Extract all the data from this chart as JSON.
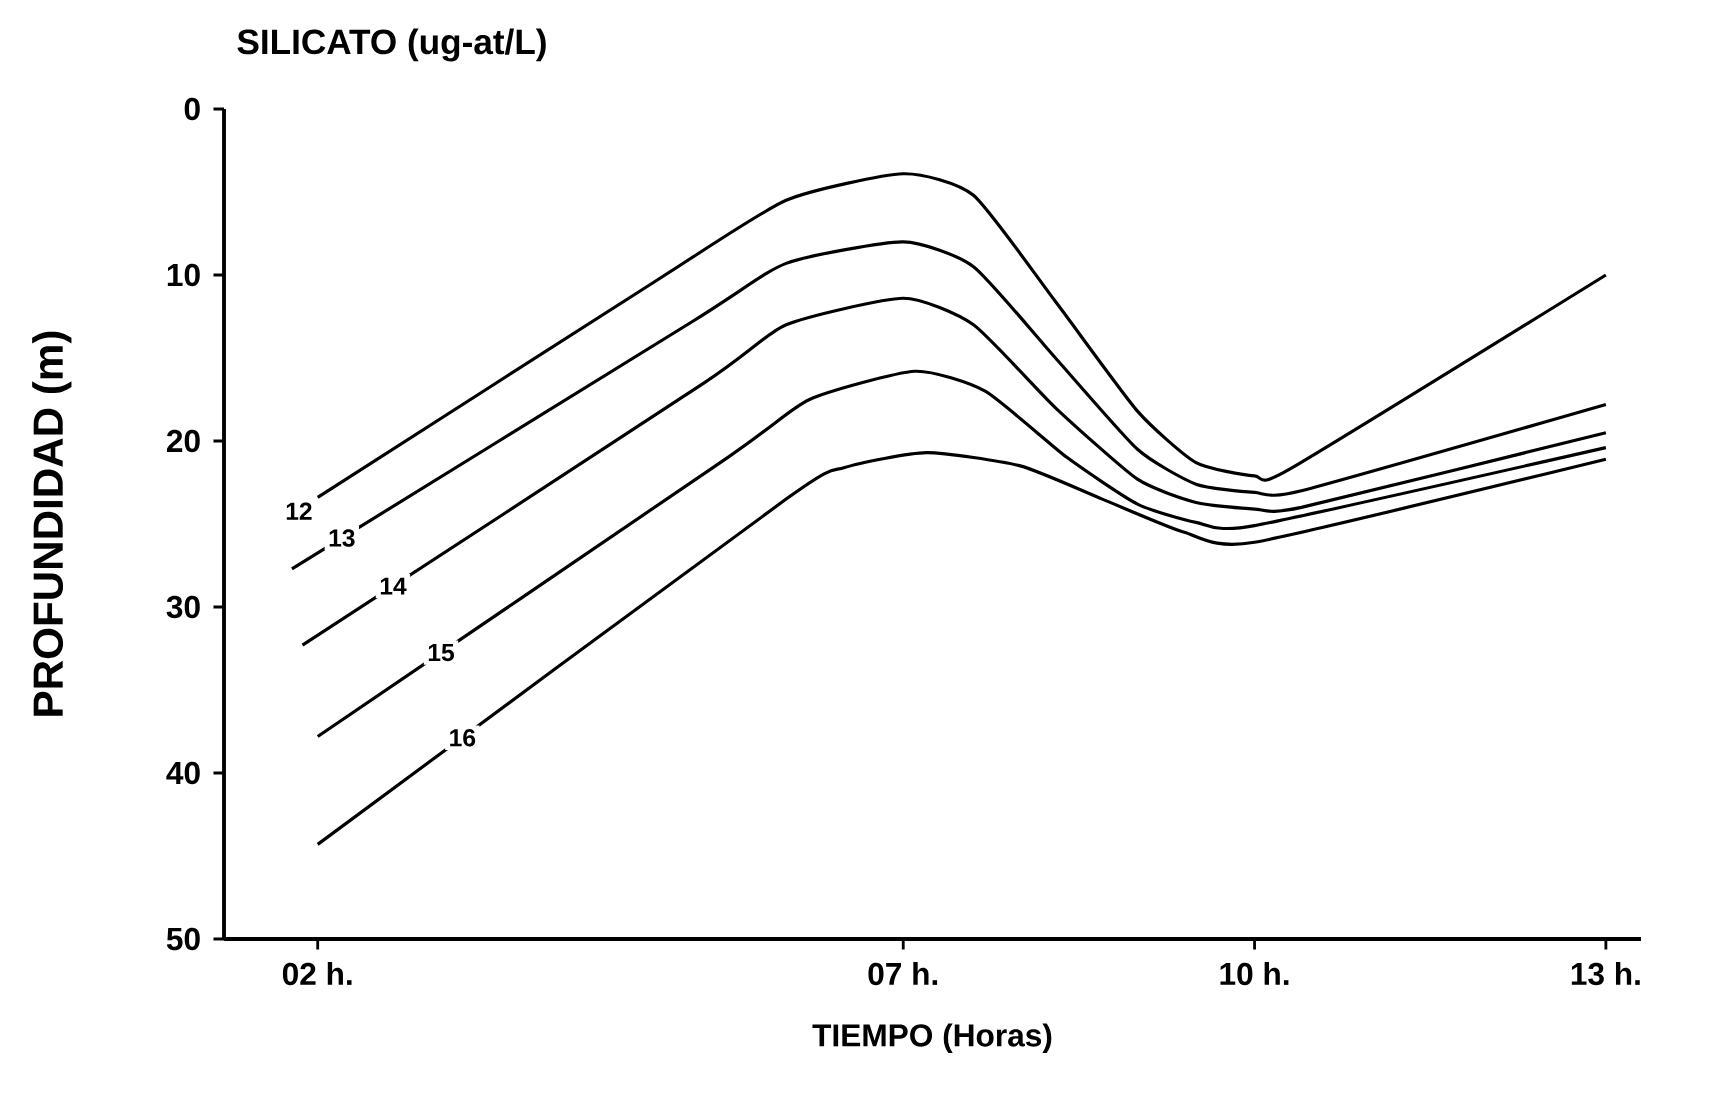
{
  "chart_data": {
    "type": "line",
    "title": "SILICATO (ug-at/L)",
    "xlabel": "TIEMPO (Horas)",
    "ylabel": "PROFUNDIDAD (m)",
    "xlim": [
      1.2,
      13.3
    ],
    "ylim": [
      50,
      0
    ],
    "xticks": [
      {
        "value": 2,
        "label": "02 h."
      },
      {
        "value": 7,
        "label": "07 h."
      },
      {
        "value": 10,
        "label": "10 h."
      },
      {
        "value": 13,
        "label": "13 h."
      }
    ],
    "yticks": [
      0,
      10,
      20,
      30,
      40,
      50
    ],
    "grid": false,
    "marker": "none",
    "line_style": "solid",
    "series": [
      {
        "name": "12",
        "color": "#000000",
        "x": [
          2,
          4.9,
          6,
          7,
          7.6,
          8.3,
          9,
          9.5,
          10,
          10.3,
          13
        ],
        "values": [
          23.4,
          10.3,
          5.5,
          3.9,
          5.2,
          11.6,
          18.2,
          21.3,
          22.1,
          21.7,
          10
        ]
      },
      {
        "name": "13",
        "color": "#000000",
        "x": [
          1.78,
          5.2,
          6,
          7,
          7.6,
          8.3,
          9,
          9.5,
          10,
          10.4,
          13
        ],
        "values": [
          27.7,
          12.8,
          9.3,
          8.0,
          9.5,
          15,
          20.5,
          22.6,
          23.1,
          23,
          17.8
        ]
      },
      {
        "name": "14",
        "color": "#000000",
        "x": [
          1.87,
          5.3,
          6,
          7,
          7.6,
          8.3,
          9,
          9.5,
          10,
          10.4,
          13
        ],
        "values": [
          32.3,
          16.5,
          13,
          11.4,
          13,
          18,
          22.3,
          23.7,
          24.1,
          24,
          19.5
        ]
      },
      {
        "name": "15",
        "color": "#000000",
        "x": [
          2,
          5.5,
          6.2,
          7.1,
          7.7,
          8.4,
          9,
          9.5,
          10,
          13
        ],
        "values": [
          37.8,
          21,
          17.5,
          15.8,
          17,
          21,
          23.8,
          24.9,
          25.1,
          20.4
        ]
      },
      {
        "name": "16",
        "color": "#000000",
        "x": [
          2,
          6,
          6.5,
          7.2,
          8,
          8.7,
          9.4,
          10,
          13
        ],
        "values": [
          44.3,
          23.5,
          21.6,
          20.7,
          21.5,
          23.5,
          25.5,
          26.1,
          21.1
        ]
      }
    ]
  }
}
